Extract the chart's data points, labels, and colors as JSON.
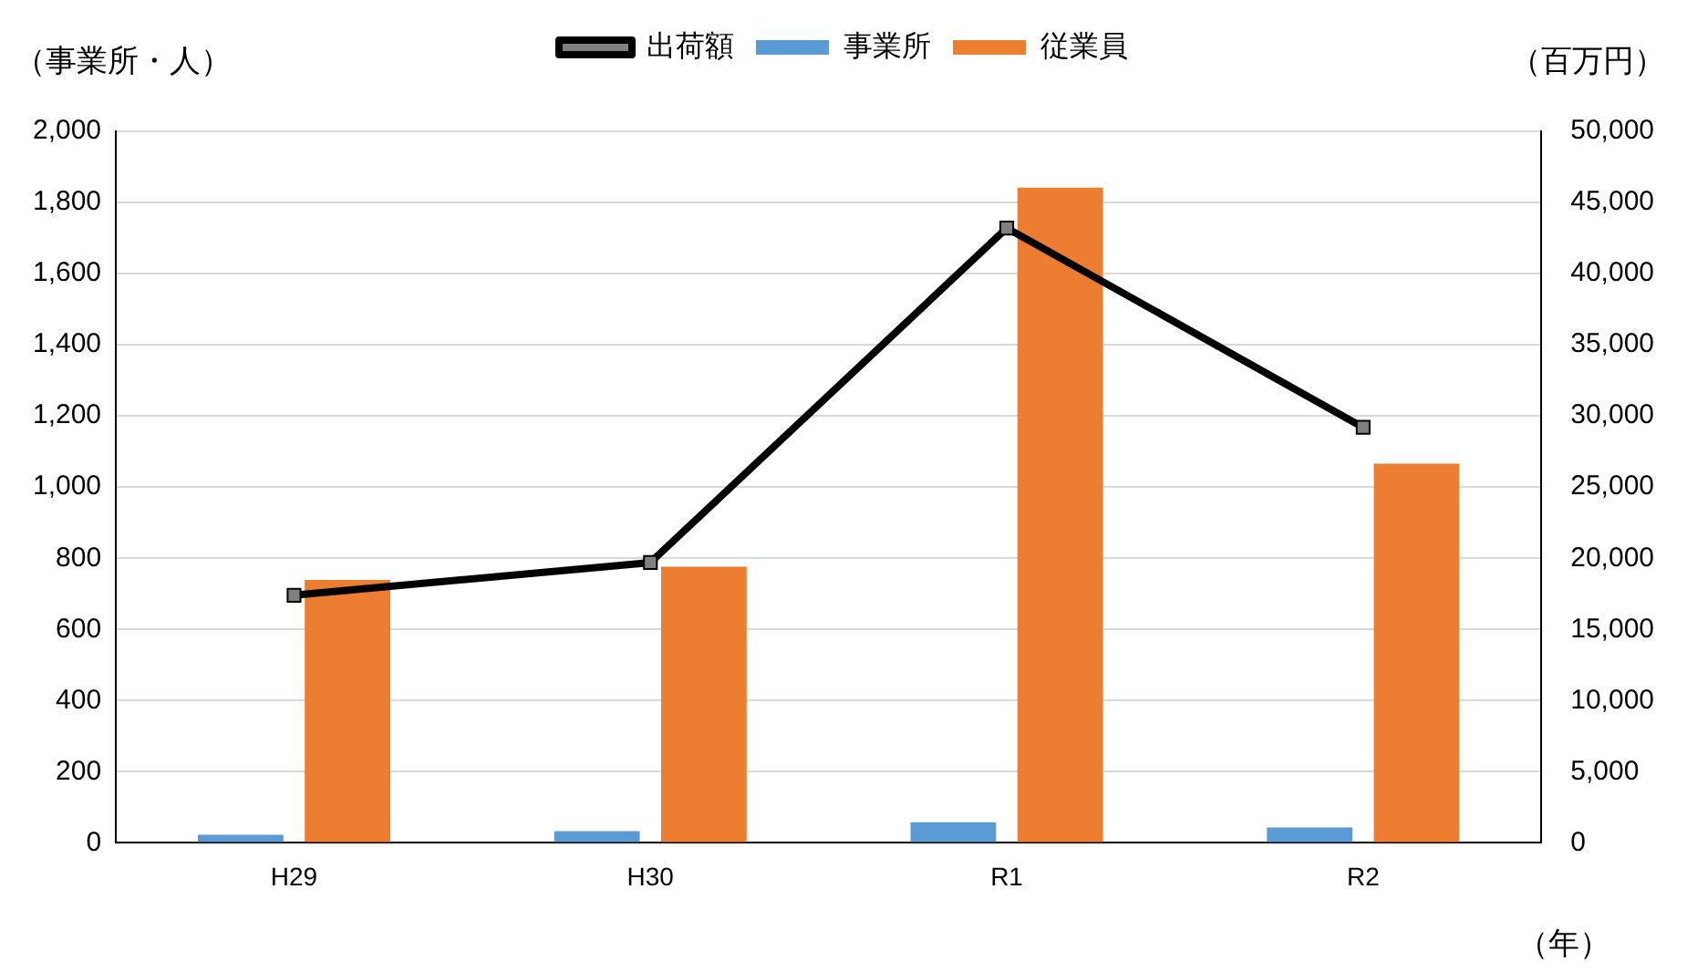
{
  "chart_data": {
    "type": "bar",
    "categories": [
      "H29",
      "H30",
      "R1",
      "R2"
    ],
    "xlabel": "（年）",
    "ylabel": "（事業所・人）",
    "y2label": "（百万円）",
    "series": [
      {
        "name": "事業所",
        "color": "#5b9bd5",
        "values": [
          23,
          33,
          58,
          43
        ]
      },
      {
        "name": "従業員",
        "color": "#ed7d31",
        "values": [
          739,
          776,
          1842,
          1066
        ]
      },
      {
        "name": "出荷額",
        "type": "line",
        "axis": "y2",
        "color": "#000000",
        "marker": "square",
        "values": [
          17400,
          19700,
          43200,
          29200
        ]
      }
    ],
    "ylim": [
      0,
      2000
    ],
    "yticks": [
      {
        "value": 0,
        "label": "0"
      },
      {
        "value": 200,
        "label": "200"
      },
      {
        "value": 400,
        "label": "400"
      },
      {
        "value": 600,
        "label": "600"
      },
      {
        "value": 800,
        "label": "800"
      },
      {
        "value": 1000,
        "label": "1,000"
      },
      {
        "value": 1200,
        "label": "1,200"
      },
      {
        "value": 1400,
        "label": "1,400"
      },
      {
        "value": 1600,
        "label": "1,600"
      },
      {
        "value": 1800,
        "label": "1,800"
      },
      {
        "value": 2000,
        "label": "2,000"
      }
    ],
    "y2lim": [
      0,
      50000
    ],
    "y2ticks": [
      {
        "value": 0,
        "label": "0"
      },
      {
        "value": 5000,
        "label": "5,000"
      },
      {
        "value": 10000,
        "label": "10,000"
      },
      {
        "value": 15000,
        "label": "15,000"
      },
      {
        "value": 20000,
        "label": "20,000"
      },
      {
        "value": 25000,
        "label": "25,000"
      },
      {
        "value": 30000,
        "label": "30,000"
      },
      {
        "value": 35000,
        "label": "35,000"
      },
      {
        "value": 40000,
        "label": "40,000"
      },
      {
        "value": 45000,
        "label": "45,000"
      },
      {
        "value": 50000,
        "label": "50,000"
      }
    ],
    "grid": "y",
    "legend": "top"
  }
}
